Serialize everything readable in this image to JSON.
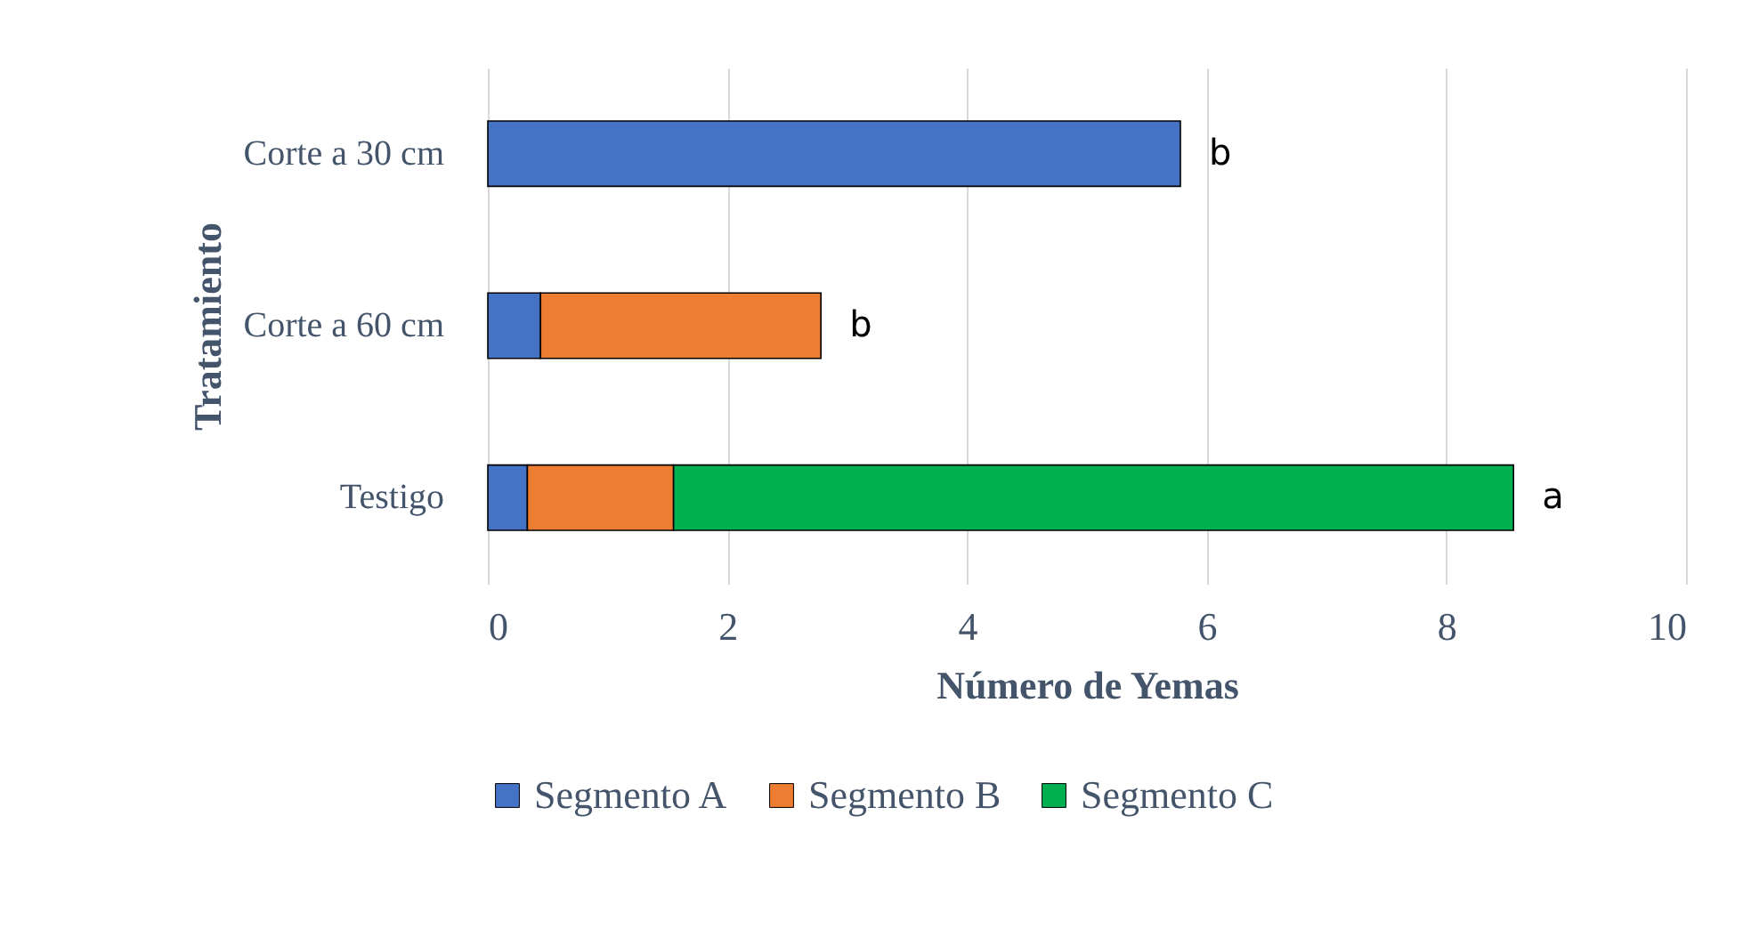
{
  "chart_data": {
    "type": "bar",
    "orientation": "horizontal",
    "stacked": true,
    "xlabel": "Número de Yemas",
    "ylabel": "Tratamiento",
    "categories": [
      "Corte a 30 cm",
      "Corte a 60 cm",
      "Testigo"
    ],
    "series": [
      {
        "name": "Segmento A",
        "color": "#4472c4",
        "values": [
          5.78,
          0.44,
          0.33
        ]
      },
      {
        "name": "Segmento B",
        "color": "#ed7d31",
        "values": [
          null,
          2.34,
          1.22
        ]
      },
      {
        "name": "Segmento C",
        "color": "#00b050",
        "values": [
          null,
          null,
          7.01
        ]
      }
    ],
    "xlim": [
      0,
      10
    ],
    "xticks": [
      0,
      2,
      4,
      6,
      8,
      10
    ],
    "grid": "x",
    "legend": "bottom",
    "annotations": [
      {
        "text": "b",
        "x": 5.78,
        "y": "Corte a 30 cm"
      },
      {
        "text": "b",
        "x": 2.78,
        "y": "Corte a 60 cm"
      },
      {
        "text": "a",
        "x": 8.56,
        "y": "Testigo"
      }
    ]
  }
}
